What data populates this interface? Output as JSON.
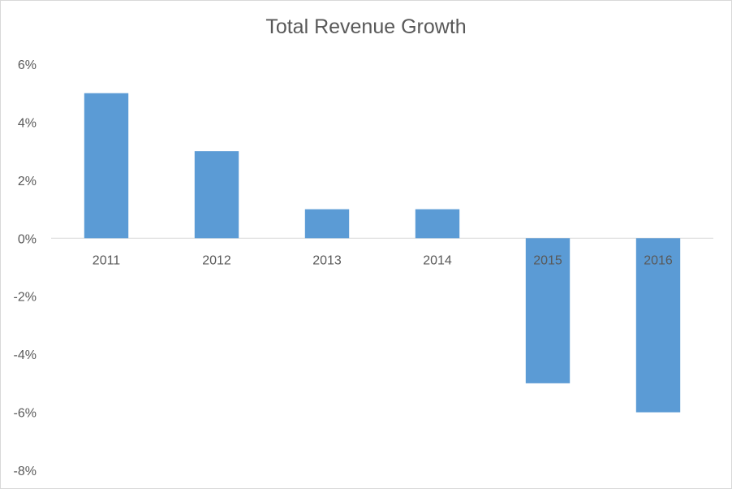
{
  "chart_data": {
    "type": "bar",
    "title": "Total Revenue Growth",
    "categories": [
      "2011",
      "2012",
      "2013",
      "2014",
      "2015",
      "2016"
    ],
    "values": [
      5,
      3,
      1,
      1,
      -5,
      -6
    ],
    "ylim": [
      -8,
      6
    ],
    "yticks": [
      6,
      4,
      2,
      0,
      -2,
      -4,
      -6,
      -8
    ],
    "ytick_labels": [
      "6%",
      "4%",
      "2%",
      "0%",
      "-2%",
      "-4%",
      "-6%",
      "-8%"
    ],
    "bar_color": "#5b9bd5",
    "grid": false,
    "legend": "none"
  }
}
